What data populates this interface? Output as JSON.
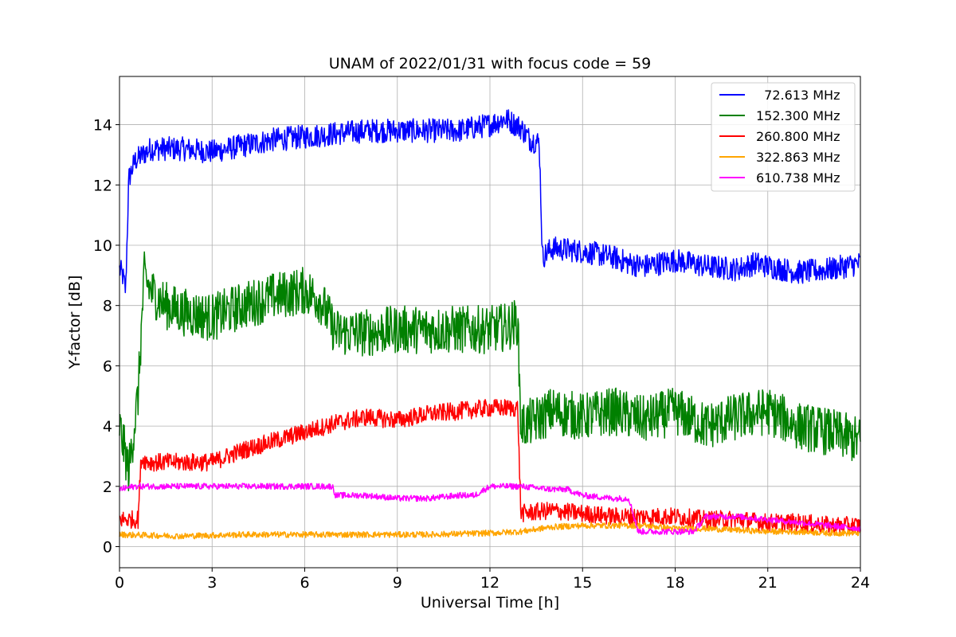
{
  "chart_data": {
    "type": "line",
    "title": "UNAM of 2022/01/31 with focus code = 59",
    "xlabel": "Universal Time [h]",
    "ylabel": "Y-factor [dB]",
    "xlim": [
      0,
      24
    ],
    "ylim": [
      -0.7,
      15.6
    ],
    "xticks": [
      0,
      3,
      6,
      9,
      12,
      15,
      18,
      21,
      24
    ],
    "xtick_labels": [
      "0",
      "3",
      "6",
      "9",
      "12",
      "15",
      "18",
      "21",
      "24"
    ],
    "yticks": [
      0,
      2,
      4,
      6,
      8,
      10,
      12,
      14
    ],
    "ytick_labels": [
      "0",
      "2",
      "4",
      "6",
      "8",
      "10",
      "12",
      "14"
    ],
    "grid": true,
    "legend_position": "top-right",
    "series": [
      {
        "name": "  72.613 MHz",
        "color": "#0000ff",
        "x": [
          0,
          0.1,
          0.2,
          0.3,
          0.5,
          1,
          2,
          3,
          4,
          5,
          6,
          7,
          8,
          9,
          10,
          11,
          12,
          12.5,
          13,
          13.3,
          13.6,
          13.7,
          14,
          15,
          16,
          16.5,
          17,
          18,
          19,
          20,
          20.6,
          21,
          22,
          23,
          24
        ],
        "y": [
          9.2,
          9.0,
          8.5,
          12.2,
          12.8,
          13.2,
          13.2,
          13.1,
          13.3,
          13.5,
          13.6,
          13.7,
          13.8,
          13.8,
          13.8,
          13.8,
          14.0,
          14.2,
          13.9,
          13.5,
          13.4,
          9.6,
          9.9,
          9.8,
          9.6,
          9.4,
          9.3,
          9.5,
          9.3,
          9.2,
          9.4,
          9.3,
          9.1,
          9.2,
          9.4
        ],
        "noise": 0.4
      },
      {
        "name": "152.300 MHz",
        "color": "#008000",
        "x": [
          0,
          0.3,
          0.6,
          0.8,
          1,
          1.5,
          2,
          3,
          4,
          5,
          6,
          6.5,
          7,
          8,
          9,
          10,
          11,
          12,
          12.6,
          12.9,
          13,
          13.5,
          14,
          15,
          16,
          17,
          18,
          19,
          20,
          21,
          22,
          23,
          24
        ],
        "y": [
          4,
          2.5,
          5,
          9,
          8.5,
          8,
          7.8,
          7.6,
          8,
          8.3,
          8.5,
          8.2,
          7.1,
          7.1,
          7.2,
          7.2,
          7.2,
          7.2,
          7.3,
          7.5,
          4,
          4.2,
          4.5,
          4.3,
          4.5,
          4.2,
          4.5,
          4.0,
          4.3,
          4.5,
          4.0,
          3.8,
          3.5
        ],
        "noise": 0.8
      },
      {
        "name": "260.800 MHz",
        "color": "#ff0000",
        "x": [
          0,
          0.6,
          0.7,
          1,
          2,
          3,
          4,
          5,
          6,
          7,
          8,
          9,
          10,
          11,
          12,
          12.9,
          13,
          14,
          15,
          16,
          17,
          18,
          19,
          20,
          21,
          22,
          23,
          24
        ],
        "y": [
          0.9,
          0.9,
          2.9,
          2.8,
          2.8,
          2.8,
          3.2,
          3.5,
          3.8,
          4.1,
          4.3,
          4.2,
          4.4,
          4.5,
          4.6,
          4.6,
          1.1,
          1.2,
          1.1,
          1.0,
          1.0,
          1.0,
          0.9,
          0.9,
          0.8,
          0.8,
          0.7,
          0.7
        ],
        "noise": 0.3
      },
      {
        "name": "322.863 MHz",
        "color": "#ffa500",
        "x": [
          0,
          2,
          4,
          6,
          8,
          10,
          12,
          13,
          14,
          15,
          16,
          17,
          18,
          19,
          20,
          21,
          22,
          23,
          24
        ],
        "y": [
          0.4,
          0.35,
          0.4,
          0.4,
          0.4,
          0.4,
          0.45,
          0.5,
          0.65,
          0.7,
          0.7,
          0.7,
          0.6,
          0.6,
          0.55,
          0.5,
          0.5,
          0.45,
          0.45
        ],
        "noise": 0.1
      },
      {
        "name": "610.738 MHz",
        "color": "#ff00ff",
        "x": [
          0,
          0.5,
          1,
          2,
          3,
          4,
          5,
          6,
          6.9,
          7,
          8,
          9,
          10,
          11,
          11.5,
          12,
          13,
          14,
          14.5,
          15,
          16,
          16.5,
          16.8,
          17,
          18,
          18.6,
          19,
          20,
          21,
          22,
          23,
          24
        ],
        "y": [
          1.9,
          2.0,
          2.0,
          2.0,
          2.0,
          2.0,
          2.0,
          2.0,
          2.0,
          1.7,
          1.7,
          1.6,
          1.6,
          1.7,
          1.7,
          2.0,
          2.0,
          1.9,
          1.9,
          1.7,
          1.6,
          1.6,
          0.5,
          0.5,
          0.5,
          0.5,
          1.0,
          1.0,
          0.9,
          0.8,
          0.7,
          0.6
        ],
        "noise": 0.1
      }
    ]
  }
}
